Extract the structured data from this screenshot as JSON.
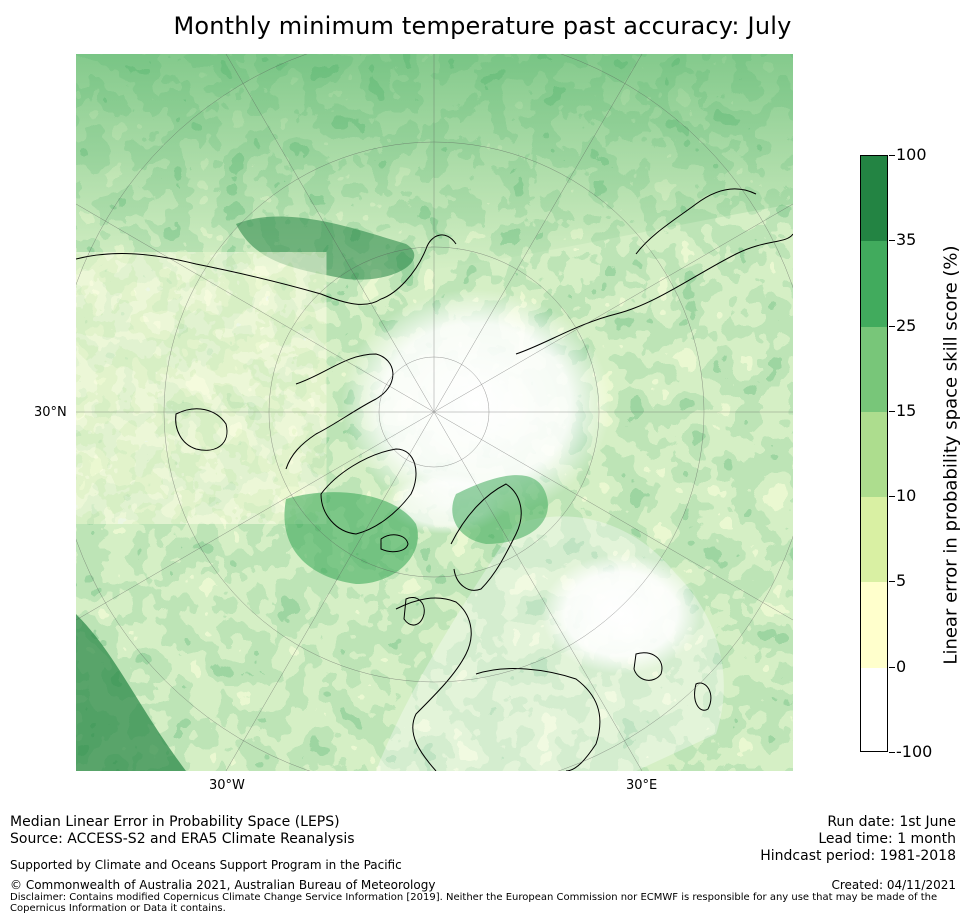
{
  "title": "Monthly minimum temperature past accuracy: July",
  "map": {
    "lat_labels": [
      "30°N"
    ],
    "lon_labels": [
      "30°W",
      "30°E"
    ]
  },
  "colorbar": {
    "title": "Linear error in probability space skill score (%)",
    "ticks": [
      "100",
      "35",
      "25",
      "15",
      "10",
      "5",
      "0",
      "-100"
    ],
    "colors": [
      "#238443",
      "#41ab5d",
      "#78c679",
      "#addd8e",
      "#d9f0a3",
      "#ffffcc",
      "#ffffff"
    ]
  },
  "footer": {
    "left_line1": "Median Linear Error in Probability Space (LEPS)",
    "left_line2": "Source: ACCESS-S2 and ERA5 Climate Reanalysis",
    "support": "Supported by Climate and Oceans Support Program in the Pacific",
    "copyright": "© Commonwealth of Australia 2021, Australian Bureau of Meteorology",
    "disclaimer": "Disclaimer: Contains modified Copernicus Climate Change Service Information [2019]. Neither the European Commission nor ECMWF is responsible for any use that may be made of the Copernicus Information or Data it contains.",
    "run_date": "Run date: 1st June",
    "lead_time": "Lead time: 1 month",
    "hindcast": "Hindcast period: 1981-2018",
    "created": "Created: 04/11/2021"
  }
}
